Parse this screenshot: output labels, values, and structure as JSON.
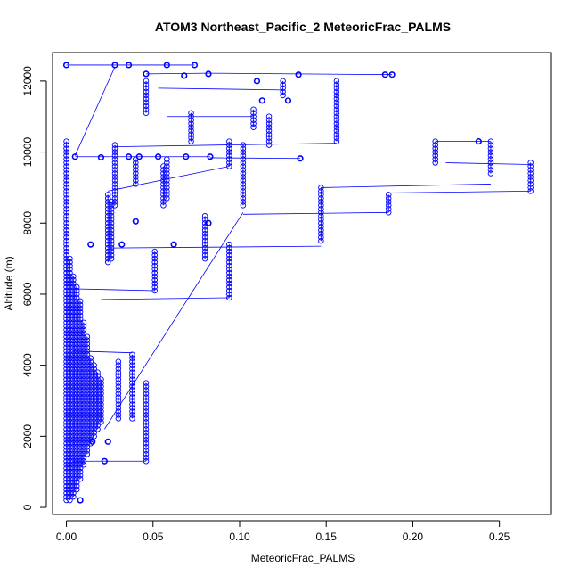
{
  "chart_data": {
    "type": "scatter",
    "title": "ATOM3 Northeast_Pacific_2 MeteoricFrac_PALMS",
    "xlabel": "MeteoricFrac_PALMS",
    "ylabel": "Altitude (m)",
    "xlim": [
      -0.008,
      0.28
    ],
    "ylim": [
      -200,
      12800
    ],
    "x_ticks": [
      0.0,
      0.05,
      0.1,
      0.15,
      0.2,
      0.25
    ],
    "x_tick_labels": [
      "0.00",
      "0.05",
      "0.10",
      "0.15",
      "0.20",
      "0.25"
    ],
    "y_ticks": [
      0,
      2000,
      4000,
      6000,
      8000,
      10000,
      12000
    ],
    "y_tick_labels": [
      "0",
      "2000",
      "4000",
      "6000",
      "8000",
      "10000",
      "12000"
    ],
    "grid": false,
    "legend": "none",
    "marker": "open circle",
    "connected_by_line": true,
    "color": "#0000ff",
    "vertical_runs": [
      {
        "x": 0.0,
        "y_from": 200,
        "y_to": 10300
      },
      {
        "x": 0.002,
        "y_from": 200,
        "y_to": 7000
      },
      {
        "x": 0.004,
        "y_from": 300,
        "y_to": 6500
      },
      {
        "x": 0.006,
        "y_from": 500,
        "y_to": 6200
      },
      {
        "x": 0.008,
        "y_from": 800,
        "y_to": 5800
      },
      {
        "x": 0.01,
        "y_from": 1200,
        "y_to": 5200
      },
      {
        "x": 0.012,
        "y_from": 1500,
        "y_to": 4800
      },
      {
        "x": 0.014,
        "y_from": 1800,
        "y_to": 4200
      },
      {
        "x": 0.016,
        "y_from": 2000,
        "y_to": 4000
      },
      {
        "x": 0.018,
        "y_from": 2200,
        "y_to": 3800
      },
      {
        "x": 0.02,
        "y_from": 2400,
        "y_to": 3600
      },
      {
        "x": 0.024,
        "y_from": 6900,
        "y_to": 8800
      },
      {
        "x": 0.026,
        "y_from": 7000,
        "y_to": 8600
      },
      {
        "x": 0.028,
        "y_from": 8500,
        "y_to": 10200
      },
      {
        "x": 0.03,
        "y_from": 2500,
        "y_to": 4100
      },
      {
        "x": 0.038,
        "y_from": 2500,
        "y_to": 4300
      },
      {
        "x": 0.04,
        "y_from": 9100,
        "y_to": 9800
      },
      {
        "x": 0.046,
        "y_from": 1300,
        "y_to": 3500
      },
      {
        "x": 0.046,
        "y_from": 11100,
        "y_to": 12000
      },
      {
        "x": 0.051,
        "y_from": 6100,
        "y_to": 7200
      },
      {
        "x": 0.056,
        "y_from": 8500,
        "y_to": 9600
      },
      {
        "x": 0.058,
        "y_from": 8700,
        "y_to": 9800
      },
      {
        "x": 0.072,
        "y_from": 10300,
        "y_to": 11100
      },
      {
        "x": 0.08,
        "y_from": 7000,
        "y_to": 8200
      },
      {
        "x": 0.094,
        "y_from": 5900,
        "y_to": 7400
      },
      {
        "x": 0.094,
        "y_from": 9600,
        "y_to": 10300
      },
      {
        "x": 0.102,
        "y_from": 8500,
        "y_to": 10200
      },
      {
        "x": 0.108,
        "y_from": 10700,
        "y_to": 11200
      },
      {
        "x": 0.117,
        "y_from": 10200,
        "y_to": 11000
      },
      {
        "x": 0.125,
        "y_from": 11600,
        "y_to": 12000
      },
      {
        "x": 0.147,
        "y_from": 7500,
        "y_to": 9000
      },
      {
        "x": 0.156,
        "y_from": 10300,
        "y_to": 12000
      },
      {
        "x": 0.186,
        "y_from": 8300,
        "y_to": 8800
      },
      {
        "x": 0.213,
        "y_from": 9700,
        "y_to": 10300
      },
      {
        "x": 0.245,
        "y_from": 9400,
        "y_to": 10300
      },
      {
        "x": 0.268,
        "y_from": 8900,
        "y_to": 9700
      }
    ],
    "points": [
      {
        "x": 0.0,
        "y": 12450
      },
      {
        "x": 0.028,
        "y": 12450
      },
      {
        "x": 0.036,
        "y": 12450
      },
      {
        "x": 0.058,
        "y": 12450
      },
      {
        "x": 0.074,
        "y": 12450
      },
      {
        "x": 0.046,
        "y": 12200
      },
      {
        "x": 0.068,
        "y": 12150
      },
      {
        "x": 0.082,
        "y": 12200
      },
      {
        "x": 0.134,
        "y": 12180
      },
      {
        "x": 0.184,
        "y": 12180
      },
      {
        "x": 0.188,
        "y": 12180
      },
      {
        "x": 0.11,
        "y": 12000
      },
      {
        "x": 0.113,
        "y": 11450
      },
      {
        "x": 0.128,
        "y": 11450
      },
      {
        "x": 0.005,
        "y": 9870
      },
      {
        "x": 0.02,
        "y": 9850
      },
      {
        "x": 0.036,
        "y": 9870
      },
      {
        "x": 0.042,
        "y": 9870
      },
      {
        "x": 0.053,
        "y": 9870
      },
      {
        "x": 0.069,
        "y": 9870
      },
      {
        "x": 0.083,
        "y": 9870
      },
      {
        "x": 0.135,
        "y": 9820
      },
      {
        "x": 0.238,
        "y": 10300
      },
      {
        "x": 0.04,
        "y": 8050
      },
      {
        "x": 0.082,
        "y": 8000
      },
      {
        "x": 0.014,
        "y": 7400
      },
      {
        "x": 0.032,
        "y": 7400
      },
      {
        "x": 0.062,
        "y": 7400
      },
      {
        "x": 0.015,
        "y": 1850
      },
      {
        "x": 0.024,
        "y": 1850
      },
      {
        "x": 0.022,
        "y": 1300
      },
      {
        "x": 0.008,
        "y": 200
      }
    ],
    "connections": [
      {
        "x1": 0.0,
        "y1": 12450,
        "x2": 0.074,
        "y2": 12450
      },
      {
        "x1": 0.046,
        "y1": 12200,
        "x2": 0.082,
        "y2": 12220
      },
      {
        "x1": 0.082,
        "y1": 12220,
        "x2": 0.188,
        "y2": 12180
      },
      {
        "x1": 0.028,
        "y1": 12400,
        "x2": 0.005,
        "y2": 9900
      },
      {
        "x1": 0.005,
        "y1": 9870,
        "x2": 0.083,
        "y2": 9870
      },
      {
        "x1": 0.083,
        "y1": 9840,
        "x2": 0.135,
        "y2": 9820
      },
      {
        "x1": 0.028,
        "y1": 10150,
        "x2": 0.156,
        "y2": 10250
      },
      {
        "x1": 0.213,
        "y1": 10300,
        "x2": 0.245,
        "y2": 10300
      },
      {
        "x1": 0.219,
        "y1": 9700,
        "x2": 0.268,
        "y2": 9650
      },
      {
        "x1": 0.147,
        "y1": 9000,
        "x2": 0.245,
        "y2": 9100
      },
      {
        "x1": 0.186,
        "y1": 8850,
        "x2": 0.268,
        "y2": 8900
      },
      {
        "x1": 0.102,
        "y1": 8250,
        "x2": 0.186,
        "y2": 8300
      },
      {
        "x1": 0.102,
        "y1": 8300,
        "x2": 0.022,
        "y2": 2200
      },
      {
        "x1": 0.025,
        "y1": 7300,
        "x2": 0.147,
        "y2": 7350
      },
      {
        "x1": 0.005,
        "y1": 6150,
        "x2": 0.051,
        "y2": 6100
      },
      {
        "x1": 0.02,
        "y1": 5850,
        "x2": 0.094,
        "y2": 5900
      },
      {
        "x1": 0.004,
        "y1": 4400,
        "x2": 0.038,
        "y2": 4350
      },
      {
        "x1": 0.004,
        "y1": 1300,
        "x2": 0.046,
        "y2": 1300
      },
      {
        "x1": 0.058,
        "y1": 11000,
        "x2": 0.108,
        "y2": 11000
      },
      {
        "x1": 0.053,
        "y1": 11800,
        "x2": 0.125,
        "y2": 11750
      },
      {
        "x1": 0.024,
        "y1": 8900,
        "x2": 0.094,
        "y2": 9600
      }
    ]
  }
}
